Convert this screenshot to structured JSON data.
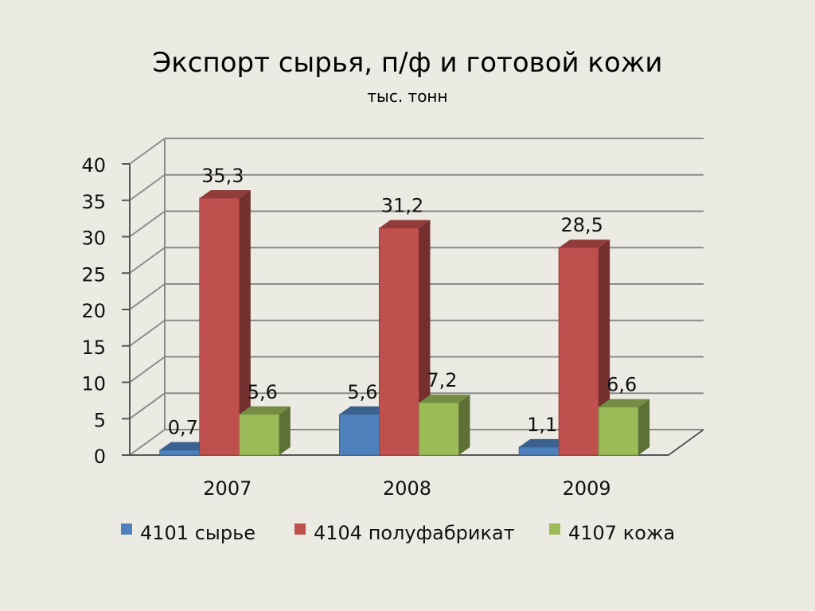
{
  "chart_data": {
    "type": "bar",
    "title": "Экспорт сырья, п/ф и готовой кожи",
    "subtitle": "тыс. тонн",
    "categories": [
      "2007",
      "2008",
      "2009"
    ],
    "series": [
      {
        "name": "4101 сырье",
        "values": [
          0.7,
          5.6,
          1.1
        ],
        "labels": [
          "0,7",
          "5,6",
          "1,1"
        ],
        "color": "#4f81bd"
      },
      {
        "name": "4104 полуфабрикат",
        "values": [
          35.3,
          31.2,
          28.5
        ],
        "labels": [
          "35,3",
          "31,2",
          "28,5"
        ],
        "color": "#c0504d"
      },
      {
        "name": "4107 кожа",
        "values": [
          5.6,
          7.2,
          6.6
        ],
        "labels": [
          "5,6",
          "7,2",
          "6,6"
        ],
        "color": "#9bbb59"
      }
    ],
    "yticks": [
      "0",
      "5",
      "10",
      "15",
      "20",
      "25",
      "30",
      "35",
      "40"
    ],
    "ylim": [
      0,
      40
    ],
    "grid": true,
    "three_d": true,
    "legend": "bottom"
  }
}
